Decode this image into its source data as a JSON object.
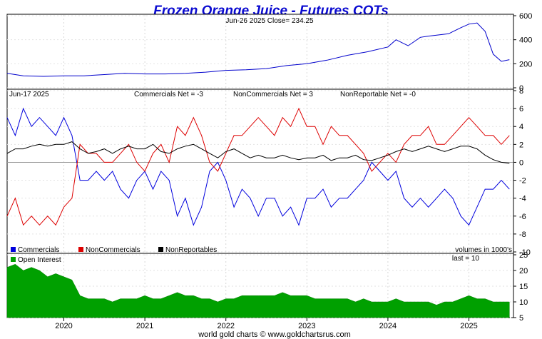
{
  "chart_data": {
    "type": "line",
    "title": "Frozen Orange Juice - Futures COTs",
    "footer": "world gold charts © www.goldchartsrus.com",
    "x_labels": [
      "2020",
      "2021",
      "2022",
      "2023",
      "2024",
      "2025"
    ],
    "colors": {
      "title": "#0a0ad0",
      "commercials": "#0000dd",
      "noncommercials": "#dd0000",
      "nonreportables": "#000000",
      "open_interest": "#00a000",
      "price": "#0000cc"
    },
    "price_panel": {
      "header": "Jun-26  2025   Close= 234.25",
      "ylim": [
        0,
        600
      ],
      "y_ticks": [
        0,
        200,
        400,
        600
      ],
      "series": {
        "name": "Close",
        "x": [
          2019.3,
          2019.5,
          2019.75,
          2020.0,
          2020.25,
          2020.5,
          2020.75,
          2021.0,
          2021.25,
          2021.5,
          2021.75,
          2022.0,
          2022.25,
          2022.5,
          2022.75,
          2023.0,
          2023.25,
          2023.5,
          2023.75,
          2024.0,
          2024.1,
          2024.25,
          2024.4,
          2024.5,
          2024.75,
          2024.9,
          2025.0,
          2025.1,
          2025.2,
          2025.3,
          2025.4,
          2025.5
        ],
        "y": [
          120,
          100,
          95,
          100,
          100,
          110,
          120,
          115,
          115,
          120,
          130,
          145,
          150,
          160,
          185,
          200,
          230,
          270,
          300,
          340,
          400,
          350,
          420,
          430,
          450,
          500,
          530,
          540,
          470,
          280,
          220,
          234
        ]
      }
    },
    "cot_panel": {
      "header_date": "Jun-17  2025",
      "header_commercials": "Commercials Net = -3",
      "header_noncommercials": "NonCommercials Net = 3",
      "header_nonreportables": "NonReportable Net = -0",
      "units_note": "volumes in 1000's",
      "ylim": [
        -10,
        8
      ],
      "y_ticks": [
        8,
        6,
        4,
        2,
        0,
        -2,
        -4,
        -6,
        -8,
        -10
      ],
      "legend": [
        "Commercials",
        "NonCommercials",
        "NonReportables"
      ],
      "series": [
        {
          "name": "Commercials",
          "x": [
            2019.3,
            2019.4,
            2019.5,
            2019.6,
            2019.7,
            2019.8,
            2019.9,
            2020.0,
            2020.1,
            2020.2,
            2020.3,
            2020.4,
            2020.5,
            2020.6,
            2020.7,
            2020.8,
            2020.9,
            2021.0,
            2021.1,
            2021.2,
            2021.3,
            2021.4,
            2021.5,
            2021.6,
            2021.7,
            2021.8,
            2021.9,
            2022.0,
            2022.1,
            2022.2,
            2022.3,
            2022.4,
            2022.5,
            2022.6,
            2022.7,
            2022.8,
            2022.9,
            2023.0,
            2023.1,
            2023.2,
            2023.3,
            2023.4,
            2023.5,
            2023.6,
            2023.7,
            2023.8,
            2023.9,
            2024.0,
            2024.1,
            2024.2,
            2024.3,
            2024.4,
            2024.5,
            2024.6,
            2024.7,
            2024.8,
            2024.9,
            2025.0,
            2025.1,
            2025.2,
            2025.3,
            2025.4,
            2025.5
          ],
          "y": [
            5,
            3,
            6,
            4,
            5,
            4,
            3,
            5,
            3,
            -2,
            -2,
            -1,
            -2,
            -1,
            -3,
            -4,
            -2,
            -1,
            -3,
            -1,
            -2,
            -6,
            -4,
            -7,
            -5,
            -1,
            0,
            -2,
            -5,
            -3,
            -4,
            -6,
            -4,
            -4,
            -6,
            -5,
            -7,
            -4,
            -4,
            -3,
            -5,
            -4,
            -4,
            -3,
            -2,
            0,
            -1,
            -2,
            -1,
            -4,
            -5,
            -4,
            -5,
            -4,
            -3,
            -4,
            -6,
            -7,
            -5,
            -3,
            -3,
            -2,
            -3
          ]
        },
        {
          "name": "NonCommercials",
          "x": [
            2019.3,
            2019.4,
            2019.5,
            2019.6,
            2019.7,
            2019.8,
            2019.9,
            2020.0,
            2020.1,
            2020.2,
            2020.3,
            2020.4,
            2020.5,
            2020.6,
            2020.7,
            2020.8,
            2020.9,
            2021.0,
            2021.1,
            2021.2,
            2021.3,
            2021.4,
            2021.5,
            2021.6,
            2021.7,
            2021.8,
            2021.9,
            2022.0,
            2022.1,
            2022.2,
            2022.3,
            2022.4,
            2022.5,
            2022.6,
            2022.7,
            2022.8,
            2022.9,
            2023.0,
            2023.1,
            2023.2,
            2023.3,
            2023.4,
            2023.5,
            2023.6,
            2023.7,
            2023.8,
            2023.9,
            2024.0,
            2024.1,
            2024.2,
            2024.3,
            2024.4,
            2024.5,
            2024.6,
            2024.7,
            2024.8,
            2024.9,
            2025.0,
            2025.1,
            2025.2,
            2025.3,
            2025.4,
            2025.5
          ],
          "y": [
            -6,
            -4,
            -7,
            -6,
            -7,
            -6,
            -7,
            -5,
            -4,
            2,
            1,
            1,
            0,
            0,
            1,
            2,
            0,
            -1,
            1,
            2,
            0,
            4,
            3,
            5,
            3,
            0,
            -1,
            1,
            3,
            3,
            4,
            5,
            4,
            3,
            5,
            4,
            6,
            4,
            4,
            2,
            4,
            3,
            3,
            2,
            1,
            -1,
            0,
            1,
            0,
            2,
            3,
            3,
            4,
            2,
            2,
            3,
            4,
            5,
            4,
            3,
            3,
            2,
            3
          ]
        },
        {
          "name": "NonReportables",
          "x": [
            2019.3,
            2019.4,
            2019.5,
            2019.6,
            2019.7,
            2019.8,
            2019.9,
            2020.0,
            2020.1,
            2020.2,
            2020.3,
            2020.4,
            2020.5,
            2020.6,
            2020.7,
            2020.8,
            2020.9,
            2021.0,
            2021.1,
            2021.2,
            2021.3,
            2021.4,
            2021.5,
            2021.6,
            2021.7,
            2021.8,
            2021.9,
            2022.0,
            2022.1,
            2022.2,
            2022.3,
            2022.4,
            2022.5,
            2022.6,
            2022.7,
            2022.8,
            2022.9,
            2023.0,
            2023.1,
            2023.2,
            2023.3,
            2023.4,
            2023.5,
            2023.6,
            2023.7,
            2023.8,
            2023.9,
            2024.0,
            2024.1,
            2024.2,
            2024.3,
            2024.4,
            2024.5,
            2024.6,
            2024.7,
            2024.8,
            2024.9,
            2025.0,
            2025.1,
            2025.2,
            2025.3,
            2025.4,
            2025.5
          ],
          "y": [
            1,
            1.5,
            1.5,
            1.8,
            2,
            1.8,
            2,
            2,
            2.3,
            1.5,
            1.0,
            1.2,
            1.5,
            1.0,
            1.5,
            1.8,
            1.5,
            1.5,
            2,
            1.2,
            1.0,
            1.5,
            1.8,
            2,
            1.5,
            1.0,
            0.5,
            1.2,
            1.5,
            1.0,
            0.5,
            0.8,
            0.5,
            0.5,
            0.8,
            0.5,
            0.3,
            0.5,
            0.5,
            0.8,
            0.2,
            0.5,
            0.5,
            0.8,
            0.3,
            0.2,
            0.5,
            0.8,
            1.2,
            1.5,
            1.2,
            1.5,
            1.8,
            1.5,
            1.2,
            1.5,
            1.8,
            1.8,
            1.5,
            0.8,
            0.3,
            0.0,
            -0.1
          ]
        }
      ]
    },
    "oi_panel": {
      "legend": "Open Interest",
      "last_note": "last = 10",
      "ylim": [
        5,
        25
      ],
      "y_ticks": [
        25,
        20,
        15,
        10,
        5
      ],
      "series": {
        "name": "Open Interest",
        "x": [
          2019.3,
          2019.4,
          2019.5,
          2019.6,
          2019.7,
          2019.8,
          2019.9,
          2020.0,
          2020.1,
          2020.2,
          2020.3,
          2020.4,
          2020.5,
          2020.6,
          2020.7,
          2020.8,
          2020.9,
          2021.0,
          2021.1,
          2021.2,
          2021.3,
          2021.4,
          2021.5,
          2021.6,
          2021.7,
          2021.8,
          2021.9,
          2022.0,
          2022.1,
          2022.2,
          2022.3,
          2022.4,
          2022.5,
          2022.6,
          2022.7,
          2022.8,
          2022.9,
          2023.0,
          2023.1,
          2023.2,
          2023.3,
          2023.4,
          2023.5,
          2023.6,
          2023.7,
          2023.8,
          2023.9,
          2024.0,
          2024.1,
          2024.2,
          2024.3,
          2024.4,
          2024.5,
          2024.6,
          2024.7,
          2024.8,
          2024.9,
          2025.0,
          2025.1,
          2025.2,
          2025.3,
          2025.4,
          2025.5
        ],
        "y": [
          21,
          22,
          20,
          21,
          20,
          18,
          19,
          18,
          17,
          12,
          11,
          11,
          11,
          10,
          11,
          11,
          11,
          12,
          11,
          11,
          12,
          13,
          12,
          12,
          11,
          11,
          10,
          11,
          11,
          12,
          12,
          12,
          12,
          12,
          13,
          12,
          12,
          12,
          11,
          11,
          11,
          11,
          11,
          10,
          11,
          10,
          10,
          10,
          11,
          10,
          10,
          10,
          10,
          9,
          10,
          10,
          11,
          12,
          11,
          11,
          10,
          10,
          10
        ]
      }
    }
  }
}
